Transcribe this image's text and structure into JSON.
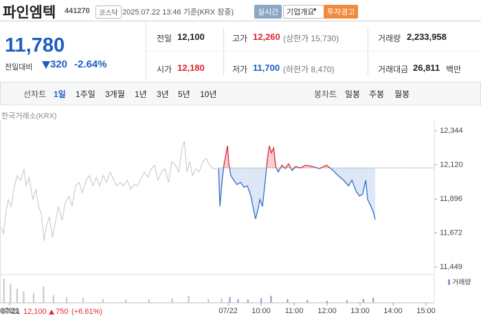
{
  "header": {
    "title": "파인엠텍",
    "code": "441270",
    "market": "코스닥",
    "timestamp": "2025.07.22 13:46 기준(KRX 장중)",
    "buttons": [
      "실시간",
      "기업개요",
      "투자경고"
    ]
  },
  "quote": {
    "price": "11,780",
    "change_label": "전일대비",
    "change": "320",
    "change_pct": "-2.64%"
  },
  "stats": [
    [
      {
        "label": "전일",
        "value": "12,100"
      },
      {
        "label": "고가",
        "value": "12,260",
        "note": "(상한가 15,730)"
      },
      {
        "label": "거래량",
        "value": "2,233,958"
      }
    ],
    [
      {
        "label": "시가",
        "value": "12,180"
      },
      {
        "label": "저가",
        "value": "11,700",
        "note": "(하한가 8,470)"
      },
      {
        "label": "거래대금",
        "value": "26,811",
        "unit": "백만"
      }
    ]
  ],
  "tabs": {
    "line_label": "선차트",
    "line_items": [
      "1일",
      "1주일",
      "3개월",
      "1년",
      "3년",
      "5년",
      "10년"
    ],
    "candle_label": "봉차트",
    "candle_items": [
      "일봉",
      "주봉",
      "월봉"
    ]
  },
  "chart_data": {
    "type": "line",
    "source": "한국거래소(KRX)",
    "xlim": [
      -6.92,
      6.25
    ],
    "xticks": [
      {
        "value": -6.63,
        "label": "07/21"
      },
      {
        "value": 0,
        "label": "07/22"
      },
      {
        "value": 1,
        "label": "10:00"
      },
      {
        "value": 2,
        "label": "11:00"
      },
      {
        "value": 3,
        "label": "12:00"
      },
      {
        "value": 4,
        "label": "13:00"
      },
      {
        "value": 5,
        "label": "14:00"
      },
      {
        "value": 6,
        "label": "15:00"
      }
    ],
    "ylim": [
      11449,
      12344
    ],
    "yticks": [
      {
        "value": 12344,
        "label": "12,344"
      },
      {
        "value": 12120,
        "label": "12,120"
      },
      {
        "value": 11896,
        "label": "11,896"
      },
      {
        "value": 11672,
        "label": "11,672"
      },
      {
        "value": 11449,
        "label": "11,449"
      }
    ],
    "reference": 12100,
    "series": [
      {
        "color": "#c4c4c4",
        "x": [
          -6.88,
          -6.81,
          -6.75,
          -6.67,
          -6.58,
          -6.5,
          -6.4,
          -6.29,
          -6.19,
          -6.13,
          -6.04,
          -5.92,
          -5.83,
          -5.75,
          -5.67,
          -5.58,
          -5.52,
          -5.42,
          -5.33,
          -5.25,
          -5.15,
          -5.04,
          -4.94,
          -4.83,
          -4.73,
          -4.63,
          -4.52,
          -4.42,
          -4.31,
          -4.21,
          -4.1,
          -4,
          -3.9,
          -3.79,
          -3.69,
          -3.58,
          -3.48,
          -3.38,
          -3.27,
          -3.17,
          -3.06,
          -2.96,
          -2.85,
          -2.75,
          -2.65,
          -2.54,
          -2.44,
          -2.33,
          -2.23,
          -2.13,
          -2.02,
          -1.92,
          -1.81,
          -1.71,
          -1.6,
          -1.5,
          -1.4,
          -1.33,
          -1.25,
          -1.17,
          -1.08,
          -0.98,
          -0.88,
          -0.77,
          -0.67,
          -0.56,
          -0.46,
          -0.33
        ],
        "values": [
          11711,
          11666,
          11802,
          11892,
          11847,
          11960,
          12050,
          12019,
          12095,
          11982,
          12037,
          11892,
          11960,
          11847,
          11802,
          11621,
          11711,
          11779,
          11643,
          11734,
          11847,
          11756,
          11869,
          11915,
          11847,
          11982,
          12005,
          11937,
          12019,
          12050,
          11982,
          12037,
          11982,
          12050,
          12005,
          12073,
          12028,
          11982,
          12005,
          11982,
          12019,
          11960,
          11991,
          11982,
          12028,
          12073,
          12037,
          12095,
          12118,
          12019,
          12073,
          12095,
          12005,
          12141,
          12118,
          12073,
          12231,
          12276,
          12073,
          12141,
          12050,
          12095,
          12073,
          12141,
          12163,
          12118,
          12095,
          12095
        ]
      },
      {
        "color": "#2f6cc5",
        "up_color": "#e0262f",
        "x": [
          -0.29,
          -0.25,
          -0.19,
          -0.13,
          -0.02,
          0.02,
          0.08,
          0.17,
          0.27,
          0.38,
          0.48,
          0.58,
          0.69,
          0.75,
          0.83,
          0.9,
          0.96,
          1.04,
          1.13,
          1.19,
          1.25,
          1.31,
          1.38,
          1.44,
          1.52,
          1.63,
          1.73,
          1.83,
          1.94,
          2.04,
          2.19,
          2.35,
          2.56,
          2.77,
          2.98,
          3.19,
          3.33,
          3.5,
          3.65,
          3.75,
          3.88,
          3.98,
          4.08,
          4.17,
          4.23,
          4.33,
          4.4,
          4.46
        ],
        "values": [
          12095,
          11847,
          12005,
          12118,
          12245,
          12127,
          12050,
          12019,
          11991,
          12005,
          11973,
          11982,
          11915,
          11847,
          11765,
          11824,
          11892,
          11847,
          12028,
          12163,
          12245,
          12199,
          12231,
          12109,
          12073,
          12118,
          12095,
          12127,
          12082,
          12109,
          12100,
          12118,
          12109,
          12095,
          12118,
          12082,
          12050,
          12019,
          11982,
          12019,
          11946,
          11915,
          11928,
          12019,
          11892,
          11847,
          11811,
          11760
        ]
      }
    ],
    "volume": {
      "name": "거래량",
      "ylim": [
        0,
        400000
      ],
      "x": [
        -6.8,
        -6.6,
        -6.4,
        -6.2,
        -5.9,
        -5.6,
        -5.3,
        -4.9,
        -4.4,
        -3.8,
        -3.1,
        -2.4,
        -1.7,
        -1.2,
        -0.6,
        -0.2,
        0.05,
        0.3,
        0.6,
        1,
        1.3,
        1.8,
        2.4,
        3,
        3.6,
        4.1,
        4.4
      ],
      "values": [
        380000,
        300000,
        220000,
        180000,
        150000,
        260000,
        120000,
        90000,
        80000,
        60000,
        50000,
        60000,
        70000,
        110000,
        60000,
        70000,
        90000,
        60000,
        50000,
        70000,
        110000,
        60000,
        40000,
        30000,
        40000,
        60000,
        80000
      ],
      "colors": [
        "#c4c4c4",
        "#9a8fc9"
      ]
    },
    "prev_day": {
      "date": "07/21",
      "close": "12,100",
      "change": "750",
      "change_pct": "(+6.61%)"
    }
  }
}
